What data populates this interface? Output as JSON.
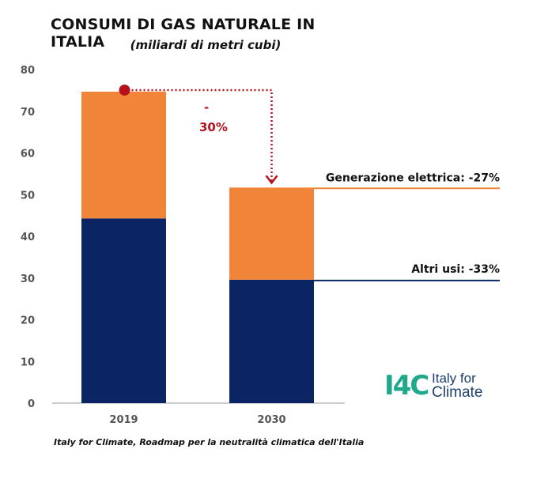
{
  "chart_data": {
    "type": "bar",
    "stacked": true,
    "title": "CONSUMI DI GAS NATURALE IN ITALIA",
    "subtitle": "(miliardi di metri cubi)",
    "categories": [
      "2019",
      "2030"
    ],
    "series": [
      {
        "values": [
          44.3,
          29.6
        ],
        "color": "#0b2463"
      },
      {
        "values": [
          30.4,
          22.1
        ],
        "color": "#f0853a"
      }
    ],
    "ylim": [
      0,
      80
    ],
    "yticks": [
      0,
      10,
      20,
      30,
      40,
      50,
      60,
      70,
      80
    ],
    "grid": false,
    "annotations": {
      "change_label_line1": "-",
      "change_label_line2": "30%",
      "generazione_label": "Generazione elettrica: -27%",
      "altri_usi_label": "Altri usi: -33%"
    },
    "colors": {
      "arrow": "#b5121b",
      "orange": "#f0853a",
      "navy": "#0b2463",
      "axis": "#999999"
    }
  },
  "source": "Italy for Climate, Roadmap per la neutralità climatica dell'Italia",
  "logo": {
    "mark": "I4C",
    "line1": "Italy for",
    "line2": "Climate",
    "mark_icon": "i4c-logo-icon"
  }
}
